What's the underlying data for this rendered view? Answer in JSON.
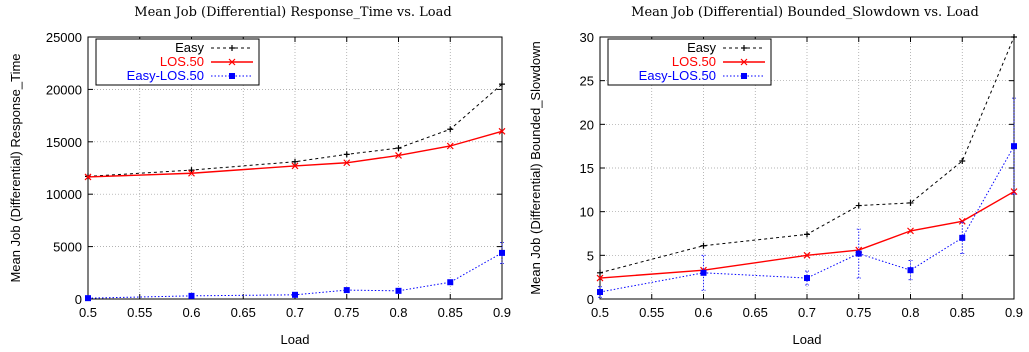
{
  "chart_data": [
    {
      "type": "line",
      "title": "Mean Job (Differential) Response_Time vs. Load",
      "xlabel": "Load",
      "ylabel": "Mean Job (Differential) Response_Time",
      "xlim": [
        0.5,
        0.9
      ],
      "ylim": [
        0,
        25000
      ],
      "xticks": [
        "0.5",
        "0.55",
        "0.6",
        "0.65",
        "0.7",
        "0.75",
        "0.8",
        "0.85",
        "0.9"
      ],
      "yticks": [
        "0",
        "5000",
        "10000",
        "15000",
        "20000",
        "25000"
      ],
      "grid": true,
      "legend_position": "top-left",
      "x": [
        0.5,
        0.6,
        0.7,
        0.75,
        0.8,
        0.85,
        0.9
      ],
      "series": [
        {
          "name": "Easy",
          "color": "#000000",
          "dash": "3,3",
          "marker": "plus",
          "values": [
            11700,
            12300,
            13100,
            13800,
            14400,
            16200,
            20500
          ]
        },
        {
          "name": "LOS.50",
          "color": "#ff0000",
          "dash": "",
          "marker": "cross",
          "values": [
            11650,
            12000,
            12700,
            13000,
            13700,
            14600,
            16000
          ]
        },
        {
          "name": "Easy-LOS.50",
          "color": "#0000ff",
          "dash": "1.5,2",
          "marker": "square",
          "values": [
            80,
            300,
            400,
            850,
            780,
            1600,
            4400
          ],
          "err": [
            0,
            0,
            0,
            0,
            0,
            0,
            1000
          ]
        }
      ]
    },
    {
      "type": "line",
      "title": "Mean Job (Differential) Bounded_Slowdown vs. Load",
      "xlabel": "Load",
      "ylabel": "Mean Job (Differential) Bounded_Slowdown",
      "xlim": [
        0.5,
        0.9
      ],
      "ylim": [
        0,
        30
      ],
      "xticks": [
        "0.5",
        "0.55",
        "0.6",
        "0.65",
        "0.7",
        "0.75",
        "0.8",
        "0.85",
        "0.9"
      ],
      "yticks": [
        "0",
        "5",
        "10",
        "15",
        "20",
        "25",
        "30"
      ],
      "grid": true,
      "legend_position": "top-left",
      "x": [
        0.5,
        0.6,
        0.7,
        0.75,
        0.8,
        0.85,
        0.9
      ],
      "series": [
        {
          "name": "Easy",
          "color": "#000000",
          "dash": "3,3",
          "marker": "plus",
          "values": [
            3.0,
            6.1,
            7.4,
            10.7,
            11.0,
            15.8,
            30.0
          ]
        },
        {
          "name": "LOS.50",
          "color": "#ff0000",
          "dash": "",
          "marker": "cross",
          "values": [
            2.4,
            3.3,
            5.0,
            5.6,
            7.8,
            8.9,
            12.3
          ]
        },
        {
          "name": "Easy-LOS.50",
          "color": "#0000ff",
          "dash": "1.5,2",
          "marker": "square",
          "values": [
            0.8,
            3.0,
            2.4,
            5.2,
            3.3,
            7.0,
            17.5
          ],
          "err": [
            0.6,
            2.0,
            0.8,
            2.8,
            1.1,
            1.8,
            5.5
          ]
        }
      ]
    }
  ]
}
